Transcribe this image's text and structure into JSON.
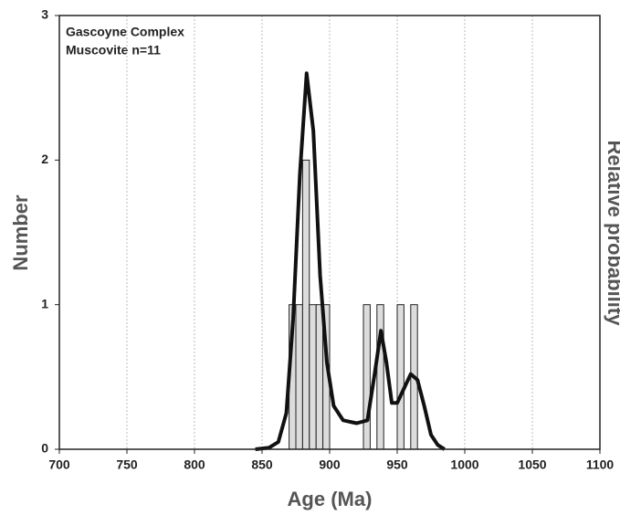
{
  "chart_data": {
    "type": "histogram",
    "annotations": [
      "Gascoyne Complex",
      "Muscovite n=11"
    ],
    "xlabel": "Age (Ma)",
    "ylabel": "Number",
    "y2label": "Relative probability",
    "bins": [
      870,
      875,
      880,
      885,
      890,
      895,
      900,
      905,
      910,
      915,
      920,
      925,
      930,
      935,
      940,
      945,
      950,
      955,
      960,
      965
    ],
    "counts": [
      1,
      1,
      2,
      1,
      1,
      1,
      0,
      0,
      0,
      0,
      0,
      1,
      0,
      1,
      0,
      0,
      1,
      0,
      1
    ],
    "color": "#dcdcdc",
    "xlim": [
      700,
      1100
    ],
    "xticks": [
      700,
      750,
      800,
      850,
      900,
      950,
      1000,
      1050,
      1100
    ],
    "ylim": [
      0,
      3
    ],
    "yticks": [
      0,
      1,
      2,
      3
    ],
    "y2lim": [
      0,
      3
    ],
    "grid": true,
    "curve": {
      "axis": "y2",
      "color": "#111111",
      "x": [
        845,
        855,
        862,
        868,
        873,
        878,
        883,
        888,
        893,
        898,
        903,
        910,
        920,
        928,
        933,
        938,
        942,
        946,
        950,
        955,
        960,
        965,
        970,
        975,
        980,
        985
      ],
      "values": [
        0,
        0.01,
        0.05,
        0.25,
        0.9,
        1.9,
        2.6,
        2.2,
        1.2,
        0.6,
        0.3,
        0.2,
        0.18,
        0.2,
        0.5,
        0.82,
        0.6,
        0.32,
        0.32,
        0.42,
        0.52,
        0.48,
        0.3,
        0.1,
        0.03,
        0
      ]
    }
  }
}
